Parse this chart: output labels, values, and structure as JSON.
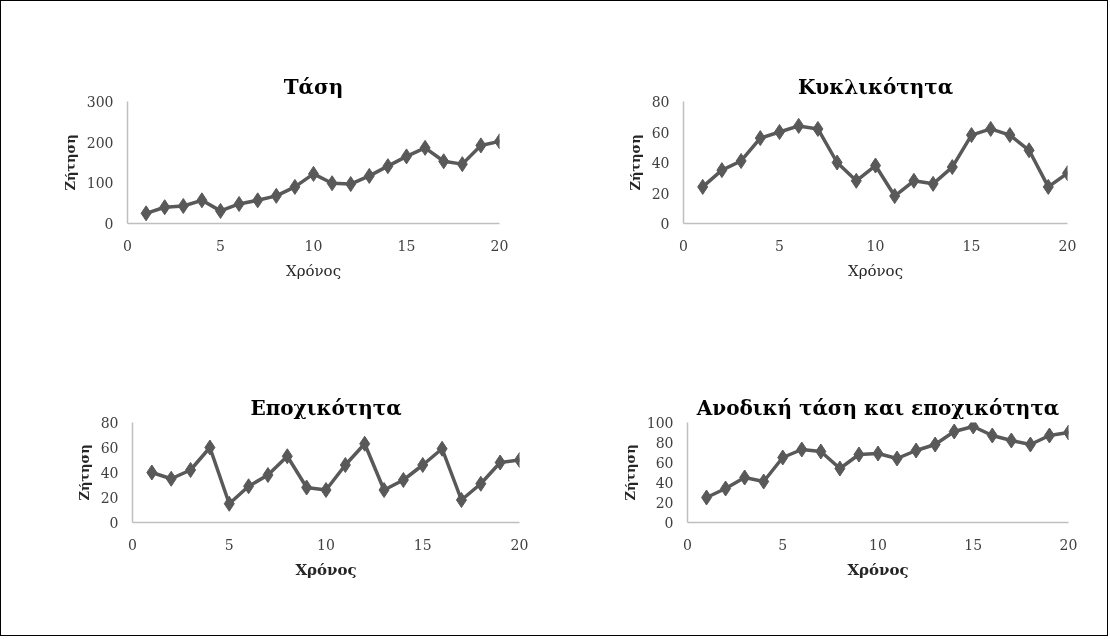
{
  "chart_data": [
    {
      "type": "line",
      "title": "Τάση",
      "xlabel": "Χρόνος",
      "ylabel": "Ζήτηση",
      "x": [
        1,
        2,
        3,
        4,
        5,
        6,
        7,
        8,
        9,
        10,
        11,
        12,
        13,
        14,
        15,
        16,
        17,
        18,
        19,
        20
      ],
      "values": [
        25,
        40,
        43,
        57,
        31,
        48,
        57,
        68,
        90,
        122,
        99,
        97,
        117,
        141,
        165,
        186,
        153,
        146,
        192,
        202
      ],
      "color": "#595959",
      "marker": "diamond",
      "xlim": [
        0,
        20
      ],
      "ylim": [
        0,
        300
      ],
      "xticks": [
        0,
        5,
        10,
        15,
        20
      ],
      "yticks": [
        0,
        100,
        200,
        300
      ]
    },
    {
      "type": "line",
      "title": "Κυκλικότητα",
      "xlabel": "Χρόνος",
      "ylabel": "Ζήτηση",
      "x": [
        1,
        2,
        3,
        4,
        5,
        6,
        7,
        8,
        9,
        10,
        11,
        12,
        13,
        14,
        15,
        16,
        17,
        18,
        19,
        20
      ],
      "values": [
        24,
        35,
        41,
        56,
        60,
        64,
        62,
        40,
        28,
        38,
        18,
        28,
        26,
        37,
        58,
        62,
        58,
        48,
        24,
        33
      ],
      "color": "#595959",
      "marker": "diamond",
      "xlim": [
        0,
        20
      ],
      "ylim": [
        0,
        80
      ],
      "xticks": [
        0,
        5,
        10,
        15,
        20
      ],
      "yticks": [
        0,
        20,
        40,
        60,
        80
      ]
    },
    {
      "type": "line",
      "title": "Εποχικότητα",
      "xlabel": "Χρόνος",
      "ylabel": "Ζήτηση",
      "x": [
        1,
        2,
        3,
        4,
        5,
        6,
        7,
        8,
        9,
        10,
        11,
        12,
        13,
        14,
        15,
        16,
        17,
        18,
        19,
        20
      ],
      "values": [
        40,
        35,
        42,
        60,
        15,
        29,
        38,
        53,
        28,
        26,
        46,
        63,
        26,
        34,
        46,
        59,
        18,
        31,
        48,
        50
      ],
      "color": "#595959",
      "marker": "diamond",
      "xlim": [
        0,
        20
      ],
      "ylim": [
        0,
        80
      ],
      "xticks": [
        0,
        5,
        10,
        15,
        20
      ],
      "yticks": [
        0,
        20,
        40,
        60,
        80
      ]
    },
    {
      "type": "line",
      "title": "Ανοδική τάση και εποχικότητα",
      "xlabel": "Χρόνος",
      "ylabel": "Ζήτηση",
      "x": [
        1,
        2,
        3,
        4,
        5,
        6,
        7,
        8,
        9,
        10,
        11,
        12,
        13,
        14,
        15,
        16,
        17,
        18,
        19,
        20
      ],
      "values": [
        25,
        34,
        45,
        41,
        65,
        73,
        71,
        54,
        68,
        69,
        64,
        72,
        78,
        91,
        96,
        87,
        82,
        78,
        87,
        90
      ],
      "color": "#595959",
      "marker": "diamond",
      "xlim": [
        0,
        20
      ],
      "ylim": [
        0,
        100
      ],
      "xticks": [
        0,
        5,
        10,
        15,
        20
      ],
      "yticks": [
        0,
        20,
        40,
        60,
        80,
        100
      ]
    }
  ]
}
